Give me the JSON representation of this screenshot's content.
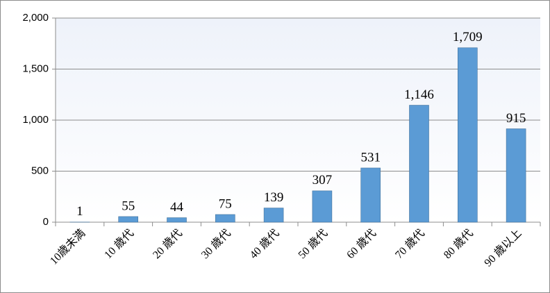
{
  "chart_data": {
    "type": "bar",
    "categories": [
      "10歳未満",
      "10 歳代",
      "20 歳代",
      "30 歳代",
      "40 歳代",
      "50 歳代",
      "60 歳代",
      "70 歳代",
      "80 歳代",
      "90 歳以上"
    ],
    "values": [
      1,
      55,
      44,
      75,
      139,
      307,
      531,
      1146,
      1709,
      915
    ],
    "value_labels": [
      "1",
      "55",
      "44",
      "75",
      "139",
      "307",
      "531",
      "1,146",
      "1,709",
      "915"
    ],
    "color": "#5b9bd5",
    "ylim": [
      0,
      2000
    ],
    "yticks": [
      0,
      500,
      {
        "value": 1000,
        "label": "1,000"
      },
      {
        "value": 1500,
        "label": "1,500"
      },
      {
        "value": 2000,
        "label": "2,000"
      }
    ],
    "grid": true
  }
}
